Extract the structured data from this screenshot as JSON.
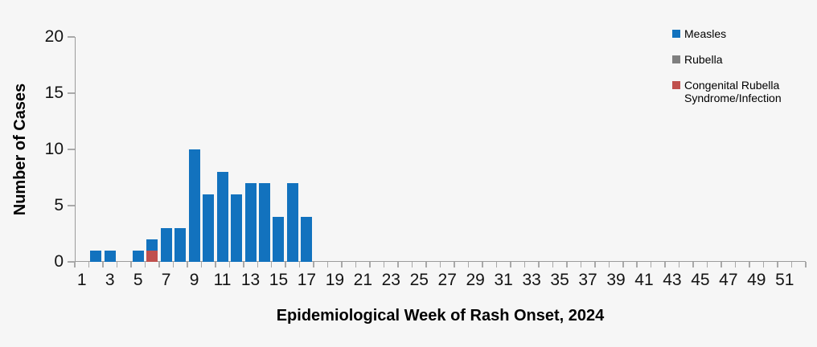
{
  "canvas": {
    "background": "#F6F6F6",
    "axis_color": "#9B9B9B",
    "tick_color": "#A9A9A9",
    "text_color": "#000000"
  },
  "chart_data": {
    "type": "bar",
    "stacked": true,
    "title": "",
    "xlabel": "Epidemiological Week of Rash Onset, 2024",
    "ylabel": "Number of Cases",
    "ylim": [
      0,
      20
    ],
    "yticks": [
      0,
      5,
      10,
      15,
      20
    ],
    "grid": false,
    "legend_position": "top-right",
    "x": [
      1,
      2,
      3,
      4,
      5,
      6,
      7,
      8,
      9,
      10,
      11,
      12,
      13,
      14,
      15,
      16,
      17,
      18,
      19,
      20,
      21,
      22,
      23,
      24,
      25,
      26,
      27,
      28,
      29,
      30,
      31,
      32,
      33,
      34,
      35,
      36,
      37,
      38,
      39,
      40,
      41,
      42,
      43,
      44,
      45,
      46,
      47,
      48,
      49,
      50,
      51,
      52
    ],
    "xtick_labels": [
      1,
      3,
      5,
      7,
      9,
      11,
      13,
      15,
      17,
      19,
      21,
      23,
      25,
      27,
      29,
      31,
      33,
      35,
      37,
      39,
      41,
      43,
      45,
      47,
      49,
      51
    ],
    "series": [
      {
        "name": "Measles",
        "color": "#1272BE",
        "values": [
          0,
          1,
          1,
          0,
          1,
          1,
          3,
          3,
          10,
          6,
          8,
          6,
          7,
          7,
          4,
          7,
          4,
          0,
          0,
          0,
          0,
          0,
          0,
          0,
          0,
          0,
          0,
          0,
          0,
          0,
          0,
          0,
          0,
          0,
          0,
          0,
          0,
          0,
          0,
          0,
          0,
          0,
          0,
          0,
          0,
          0,
          0,
          0,
          0,
          0,
          0,
          0
        ]
      },
      {
        "name": "Rubella",
        "color": "#7F7F7F",
        "values": [
          0,
          0,
          0,
          0,
          0,
          0,
          0,
          0,
          0,
          0,
          0,
          0,
          0,
          0,
          0,
          0,
          0,
          0,
          0,
          0,
          0,
          0,
          0,
          0,
          0,
          0,
          0,
          0,
          0,
          0,
          0,
          0,
          0,
          0,
          0,
          0,
          0,
          0,
          0,
          0,
          0,
          0,
          0,
          0,
          0,
          0,
          0,
          0,
          0,
          0,
          0,
          0
        ]
      },
      {
        "name": "Congenital Rubella Syndrome/Infection",
        "color": "#C0504D",
        "values": [
          0,
          0,
          0,
          0,
          0,
          1,
          0,
          0,
          0,
          0,
          0,
          0,
          0,
          0,
          0,
          0,
          0,
          0,
          0,
          0,
          0,
          0,
          0,
          0,
          0,
          0,
          0,
          0,
          0,
          0,
          0,
          0,
          0,
          0,
          0,
          0,
          0,
          0,
          0,
          0,
          0,
          0,
          0,
          0,
          0,
          0,
          0,
          0,
          0,
          0,
          0,
          0
        ]
      }
    ]
  }
}
